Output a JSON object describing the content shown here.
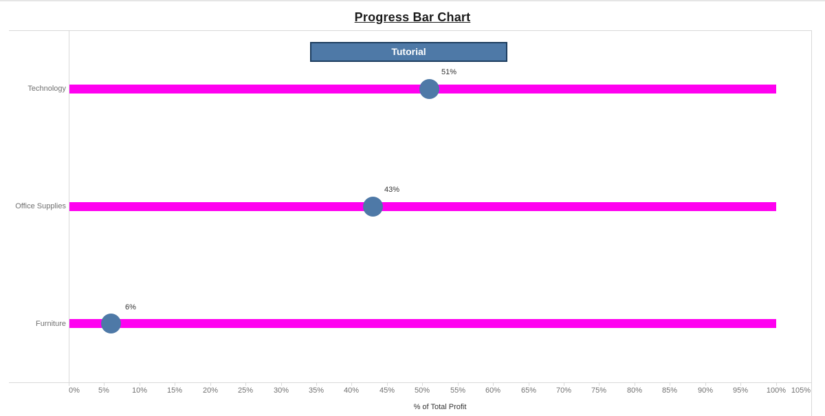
{
  "page": {
    "title": "Progress Bar Chart"
  },
  "tutorial_button": {
    "label": "Tutorial"
  },
  "chart_data": {
    "type": "bar",
    "subtype": "progress-dot-plot",
    "orientation": "horizontal",
    "title": "Progress Bar Chart",
    "categories": [
      "Technology",
      "Office Supplies",
      "Furniture"
    ],
    "series": [
      {
        "name": "% of Total Profit",
        "values": [
          51,
          43,
          6
        ],
        "labels": [
          "51%",
          "43%",
          "6%"
        ]
      }
    ],
    "track_full_value": 100,
    "xlabel": "% of Total Profit",
    "xlim": [
      0,
      105
    ],
    "x_tick_step": 5,
    "x_ticks": [
      "0%",
      "5%",
      "10%",
      "15%",
      "20%",
      "25%",
      "30%",
      "35%",
      "40%",
      "45%",
      "50%",
      "55%",
      "60%",
      "65%",
      "70%",
      "75%",
      "80%",
      "85%",
      "90%",
      "95%",
      "100%",
      "105%"
    ],
    "grid": false,
    "legend": "none",
    "colors": {
      "track": "#FF00F0",
      "marker": "#4E79A7",
      "button_fill": "#4E79A7",
      "button_border": "#1C3C5E",
      "axis_line": "#D8D8D8",
      "tick_label_text": "#707070",
      "category_label_text": "#707070",
      "value_label_text": "#333333",
      "axis_title_text": "#333333",
      "title_text": "#1A1A1A"
    }
  }
}
